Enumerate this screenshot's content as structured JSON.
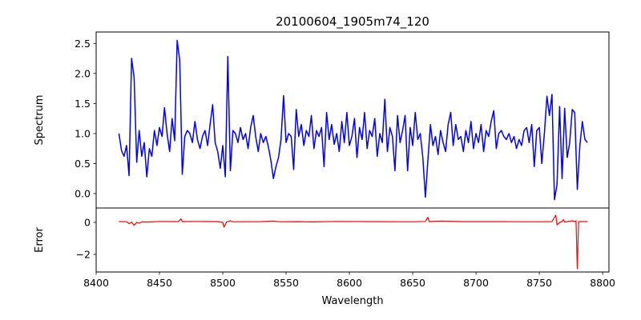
{
  "chart_data": [
    {
      "type": "line",
      "title": "20100604_1905m74_120",
      "xlabel": "",
      "ylabel": "Spectrum",
      "xlim": [
        8400,
        8805
      ],
      "ylim": [
        -0.24,
        2.69
      ],
      "yticks": [
        0.0,
        0.5,
        1.0,
        1.5,
        2.0,
        2.5
      ],
      "ytick_labels": [
        "0.0",
        "0.5",
        "1.0",
        "1.5",
        "2.0",
        "2.5"
      ],
      "grid": false,
      "series": [
        {
          "name": "Spectrum",
          "color": "#0000ff",
          "x_start": 8418,
          "x_step": 2,
          "values": [
            1.0,
            0.72,
            0.62,
            0.8,
            0.3,
            2.25,
            1.93,
            0.52,
            1.05,
            0.62,
            0.85,
            0.28,
            0.75,
            0.62,
            1.05,
            0.8,
            1.1,
            0.95,
            1.43,
            1.0,
            0.7,
            1.25,
            0.88,
            2.55,
            2.22,
            0.32,
            0.95,
            1.05,
            1.0,
            0.85,
            1.2,
            0.9,
            0.75,
            0.95,
            1.05,
            0.8,
            1.15,
            1.48,
            0.85,
            0.7,
            0.42,
            0.8,
            0.28,
            2.28,
            0.38,
            1.05,
            1.0,
            0.85,
            1.1,
            0.9,
            1.0,
            0.75,
            1.1,
            1.3,
            0.95,
            0.7,
            1.0,
            0.85,
            0.95,
            0.78,
            0.55,
            0.25,
            0.45,
            0.6,
            0.9,
            1.63,
            0.85,
            1.0,
            0.95,
            0.4,
            1.4,
            0.95,
            1.15,
            0.8,
            1.05,
            0.95,
            1.3,
            0.75,
            1.05,
            0.95,
            1.1,
            0.45,
            1.35,
            0.9,
            1.15,
            0.82,
            1.0,
            0.7,
            1.2,
            0.85,
            1.35,
            0.8,
            0.95,
            1.25,
            0.6,
            1.1,
            0.9,
            1.35,
            0.75,
            1.05,
            0.95,
            1.25,
            0.62,
            1.0,
            0.85,
            1.57,
            0.7,
            1.1,
            0.95,
            0.38,
            1.3,
            0.85,
            1.05,
            1.3,
            0.38,
            1.1,
            0.8,
            1.35,
            0.9,
            1.0,
            0.6,
            -0.06,
            0.55,
            1.15,
            0.8,
            0.95,
            0.65,
            1.05,
            0.85,
            0.7,
            1.15,
            1.35,
            0.8,
            1.15,
            0.9,
            0.95,
            0.7,
            1.05,
            0.85,
            1.2,
            0.75,
            1.0,
            0.85,
            1.15,
            0.7,
            1.05,
            0.95,
            1.2,
            1.38,
            0.75,
            1.0,
            1.05,
            0.95,
            0.9,
            1.0,
            0.85,
            0.95,
            0.75,
            0.9,
            0.8,
            1.05,
            1.1,
            0.85,
            1.15,
            0.45,
            1.05,
            1.1,
            0.5,
            1.0,
            1.62,
            1.3,
            1.65,
            -0.1,
            0.15,
            1.45,
            0.25,
            1.42,
            0.6,
            0.85,
            1.4,
            1.35,
            0.07,
            0.8,
            1.2,
            0.9,
            0.85
          ]
        }
      ]
    },
    {
      "type": "line",
      "title": "",
      "xlabel": "Wavelength",
      "ylabel": "Error",
      "xlim": [
        8400,
        8805
      ],
      "ylim": [
        -3.1,
        0.9
      ],
      "xticks": [
        8400,
        8450,
        8500,
        8550,
        8600,
        8650,
        8700,
        8750,
        8800
      ],
      "xtick_labels": [
        "8400",
        "8450",
        "8500",
        "8550",
        "8600",
        "8650",
        "8700",
        "8750",
        "8800"
      ],
      "yticks": [
        0,
        -2
      ],
      "ytick_labels": [
        "0",
        "−2"
      ],
      "grid": false,
      "series": [
        {
          "name": "Error",
          "color": "#ff0000",
          "points": [
            [
              8418,
              0.05
            ],
            [
              8424,
              0.04
            ],
            [
              8426,
              -0.08
            ],
            [
              8428,
              0.02
            ],
            [
              8430,
              -0.18
            ],
            [
              8432,
              0.0
            ],
            [
              8434,
              -0.05
            ],
            [
              8436,
              0.03
            ],
            [
              8440,
              0.02
            ],
            [
              8450,
              0.06
            ],
            [
              8460,
              0.05
            ],
            [
              8465,
              0.05
            ],
            [
              8467,
              0.22
            ],
            [
              8468,
              0.05
            ],
            [
              8480,
              0.06
            ],
            [
              8495,
              0.05
            ],
            [
              8500,
              0.0
            ],
            [
              8501,
              -0.3
            ],
            [
              8503,
              0.03
            ],
            [
              8506,
              0.1
            ],
            [
              8508,
              0.04
            ],
            [
              8530,
              0.05
            ],
            [
              8540,
              0.08
            ],
            [
              8545,
              0.04
            ],
            [
              8560,
              0.05
            ],
            [
              8570,
              0.03
            ],
            [
              8590,
              0.06
            ],
            [
              8620,
              0.05
            ],
            [
              8650,
              0.04
            ],
            [
              8660,
              0.06
            ],
            [
              8662,
              0.32
            ],
            [
              8663,
              0.05
            ],
            [
              8672,
              0.08
            ],
            [
              8690,
              0.05
            ],
            [
              8720,
              0.05
            ],
            [
              8750,
              0.04
            ],
            [
              8760,
              0.05
            ],
            [
              8763,
              0.45
            ],
            [
              8764,
              -0.15
            ],
            [
              8766,
              0.0
            ],
            [
              8768,
              0.05
            ],
            [
              8769,
              0.18
            ],
            [
              8770,
              0.02
            ],
            [
              8776,
              0.1
            ],
            [
              8778,
              0.05
            ],
            [
              8779,
              0.1
            ],
            [
              8780,
              -2.9
            ],
            [
              8781,
              0.05
            ],
            [
              8784,
              0.05
            ],
            [
              8788,
              0.05
            ]
          ]
        }
      ]
    }
  ]
}
